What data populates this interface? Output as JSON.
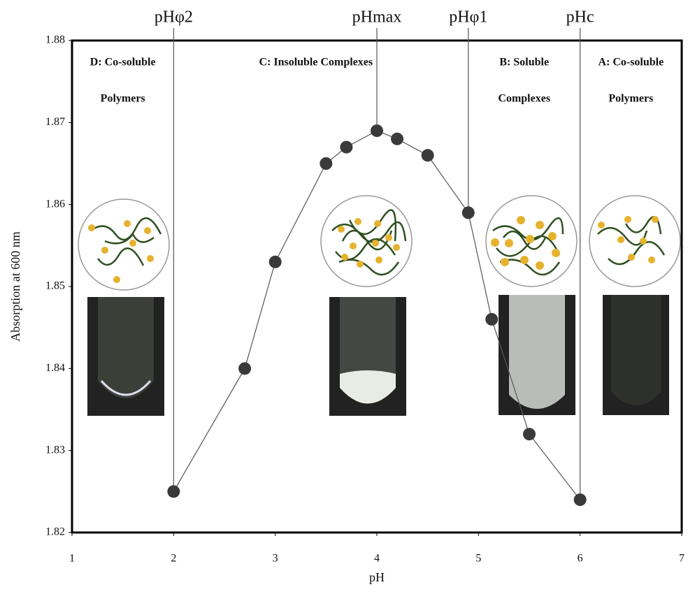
{
  "chart_data": {
    "type": "line",
    "x": [
      2.0,
      2.7,
      3.0,
      3.5,
      3.7,
      4.0,
      4.2,
      4.5,
      4.9,
      5.13,
      5.5,
      6.0
    ],
    "values": [
      1.825,
      1.84,
      1.853,
      1.865,
      1.867,
      1.869,
      1.868,
      1.866,
      1.859,
      1.846,
      1.832,
      1.824
    ],
    "color": "#3a3a3a",
    "xlabel": "pH",
    "ylabel": "Absorption at 600 nm",
    "xlim": [
      1,
      7
    ],
    "xticks": [
      1,
      2,
      3,
      4,
      5,
      6,
      7
    ],
    "ylim": [
      1.82,
      1.88
    ],
    "yticks": [
      1.82,
      1.83,
      1.84,
      1.85,
      1.86,
      1.87,
      1.88
    ],
    "annotations": [
      {
        "text": "pHφ2",
        "x": 2
      },
      {
        "text": "pHmax",
        "x": 4
      },
      {
        "text": "pHφ1",
        "x": 4.9
      },
      {
        "text": "pHc",
        "x": 6
      }
    ],
    "regions": [
      {
        "lines": [
          "D: Co-soluble",
          "Polymers"
        ],
        "x": 1.5
      },
      {
        "lines": [
          "C: Insoluble Complexes"
        ],
        "x": 3.4
      },
      {
        "lines": [
          "B: Soluble",
          "Complexes"
        ],
        "x": 5.45
      },
      {
        "lines": [
          "A: Co-soluble",
          "Polymers"
        ],
        "x": 6.5
      }
    ]
  }
}
